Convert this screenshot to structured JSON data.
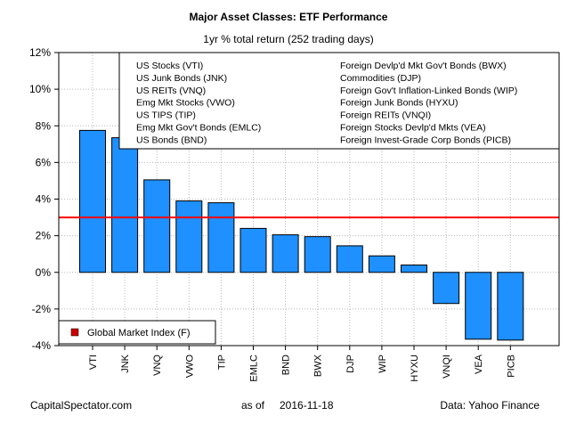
{
  "chart_data": {
    "type": "bar",
    "title": "Major Asset Classes: ETF Performance",
    "subtitle": "1yr % total return (252 trading days)",
    "categories": [
      "VTI",
      "JNK",
      "VNQ",
      "VWO",
      "TIP",
      "EMLC",
      "BND",
      "BWX",
      "DJP",
      "WIP",
      "HYXU",
      "VNQI",
      "VEA",
      "PICB"
    ],
    "values": [
      7.75,
      7.35,
      5.05,
      3.9,
      3.8,
      2.4,
      2.05,
      1.95,
      1.45,
      0.9,
      0.4,
      -1.7,
      -3.65,
      -3.7
    ],
    "ylim": [
      -4,
      12
    ],
    "yticks": [
      -4,
      -2,
      0,
      2,
      4,
      6,
      8,
      10,
      12
    ],
    "ytick_labels": [
      "-4%",
      "-2%",
      "0%",
      "2%",
      "4%",
      "6%",
      "8%",
      "10%",
      "12%"
    ],
    "bar_color": "#1e90ff",
    "grid": true,
    "reference_line": {
      "label": "Global Market Index (F)",
      "value": 3.0,
      "color": "#ff0000"
    },
    "legend_placement": "bottom-left",
    "legend_entries": {
      "left": [
        "US Stocks (VTI)",
        "US Junk Bonds (JNK)",
        "US REITs (VNQ)",
        "Emg Mkt Stocks (VWO)",
        "US TIPS (TIP)",
        "Emg Mkt Gov't Bonds (EMLC)",
        "US Bonds (BND)"
      ],
      "right": [
        "Foreign Devlp'd Mkt Gov't Bonds (BWX)",
        "Commodities (DJP)",
        "Foreign Gov't Inflation-Linked Bonds (WIP)",
        "Foreign Junk Bonds (HYXU)",
        "Foreign REITs (VNQI)",
        "Foreign Stocks Devlp'd Mkts (VEA)",
        "Foreign Invest-Grade Corp Bonds (PICB)"
      ]
    }
  },
  "footer": {
    "source_left": "CapitalSpectator.com",
    "as_of_label": "as of",
    "as_of_date": "2016-11-18",
    "source_right": "Data: Yahoo Finance"
  }
}
